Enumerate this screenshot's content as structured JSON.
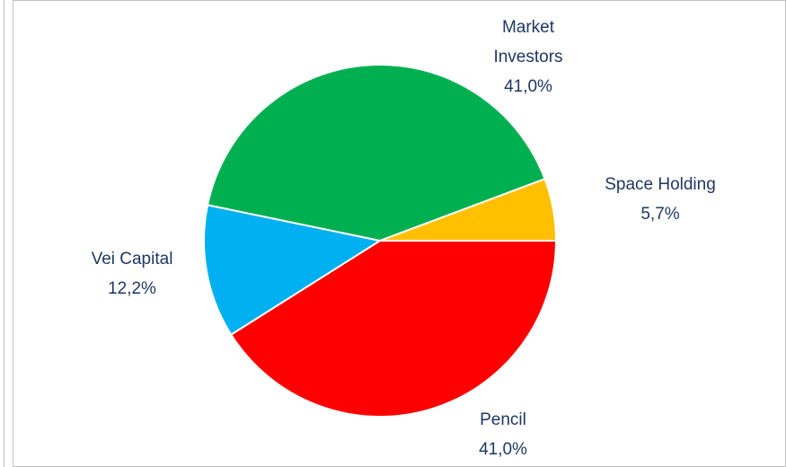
{
  "chart_data": {
    "type": "pie",
    "categories": [
      "Pencil",
      "Vei Capital",
      "Market Investors",
      "Space Holding"
    ],
    "values": [
      41.0,
      12.2,
      41.0,
      5.7
    ],
    "value_labels": [
      "41,0%",
      "12,2%",
      "41,0%",
      "5,7%"
    ],
    "colors": [
      "#ff0000",
      "#00b0f0",
      "#00b050",
      "#ffc000"
    ]
  }
}
